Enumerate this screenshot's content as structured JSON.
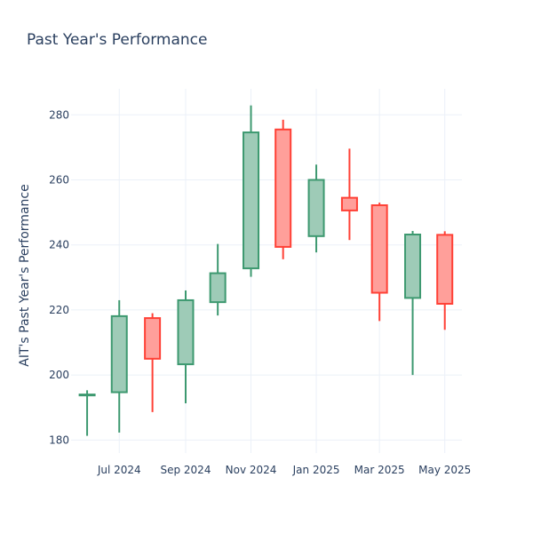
{
  "chart_data": {
    "type": "candlestick",
    "title": "Past Year's Performance",
    "xlabel": "",
    "ylabel": "AIT's Past Year's Performance",
    "ylim": [
      176,
      288
    ],
    "xlim": [
      "2024-05-17",
      "2025-05-17"
    ],
    "y_ticks": [
      180,
      200,
      220,
      240,
      260,
      280
    ],
    "x_ticks": [
      {
        "date": "2024-07-01",
        "label": "Jul 2024"
      },
      {
        "date": "2024-09-01",
        "label": "Sep 2024"
      },
      {
        "date": "2024-11-01",
        "label": "Nov 2024"
      },
      {
        "date": "2025-01-01",
        "label": "Jan 2025"
      },
      {
        "date": "2025-03-01",
        "label": "Mar 2025"
      },
      {
        "date": "2025-05-01",
        "label": "May 2025"
      }
    ],
    "grid": true,
    "increasing_color": "#3d9970",
    "increasing_fill": "#9ecbb7",
    "decreasing_color": "#ff4136",
    "decreasing_fill": "#ff9f9a",
    "candles": [
      {
        "date": "2024-06-01",
        "open": 193.8,
        "high": 195.3,
        "low": 181.3,
        "close": 194.0
      },
      {
        "date": "2024-07-01",
        "open": 194.7,
        "high": 223.0,
        "low": 182.3,
        "close": 218.1
      },
      {
        "date": "2024-08-01",
        "open": 217.5,
        "high": 219.0,
        "low": 188.6,
        "close": 205.0
      },
      {
        "date": "2024-09-01",
        "open": 203.3,
        "high": 226.0,
        "low": 191.3,
        "close": 223.0
      },
      {
        "date": "2024-10-01",
        "open": 222.4,
        "high": 240.3,
        "low": 218.3,
        "close": 231.3
      },
      {
        "date": "2024-11-01",
        "open": 232.8,
        "high": 282.9,
        "low": 230.2,
        "close": 274.6
      },
      {
        "date": "2024-12-01",
        "open": 275.5,
        "high": 278.5,
        "low": 235.6,
        "close": 239.4
      },
      {
        "date": "2025-01-01",
        "open": 242.7,
        "high": 264.7,
        "low": 237.7,
        "close": 260.0
      },
      {
        "date": "2025-02-01",
        "open": 254.5,
        "high": 269.6,
        "low": 241.5,
        "close": 250.6
      },
      {
        "date": "2025-03-01",
        "open": 252.2,
        "high": 253.0,
        "low": 216.6,
        "close": 225.3
      },
      {
        "date": "2025-04-01",
        "open": 223.7,
        "high": 244.3,
        "low": 200.0,
        "close": 243.2
      },
      {
        "date": "2025-05-01",
        "open": 243.1,
        "high": 244.2,
        "low": 213.9,
        "close": 221.9
      }
    ]
  }
}
